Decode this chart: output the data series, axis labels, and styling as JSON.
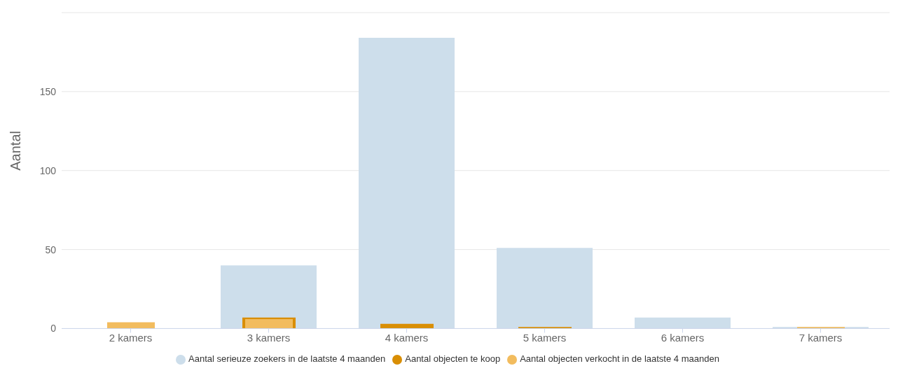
{
  "chart_data": {
    "type": "bar",
    "ylabel": "Aantal",
    "categories": [
      "2 kamers",
      "3 kamers",
      "4 kamers",
      "5 kamers",
      "6 kamers",
      "7 kamers"
    ],
    "series": [
      {
        "name": "Aantal serieuze zoekers in de laatste 4 maanden",
        "color": "#cddeeb",
        "values": [
          0,
          40,
          184,
          51,
          7,
          1
        ]
      },
      {
        "name": "Aantal objecten te koop",
        "color": "#d98e04",
        "values": [
          0,
          7,
          3,
          1,
          0,
          0
        ]
      },
      {
        "name": "Aantal objecten verkocht in de laatste 4 maanden",
        "color": "#f2bc5e",
        "values": [
          4,
          6,
          0,
          0,
          0,
          1
        ]
      }
    ],
    "ylim": [
      0,
      200
    ],
    "yticks": [
      0,
      50,
      100,
      150,
      {
        "value": 200,
        "label": null
      }
    ],
    "grid": "y",
    "legend": "bottom"
  }
}
